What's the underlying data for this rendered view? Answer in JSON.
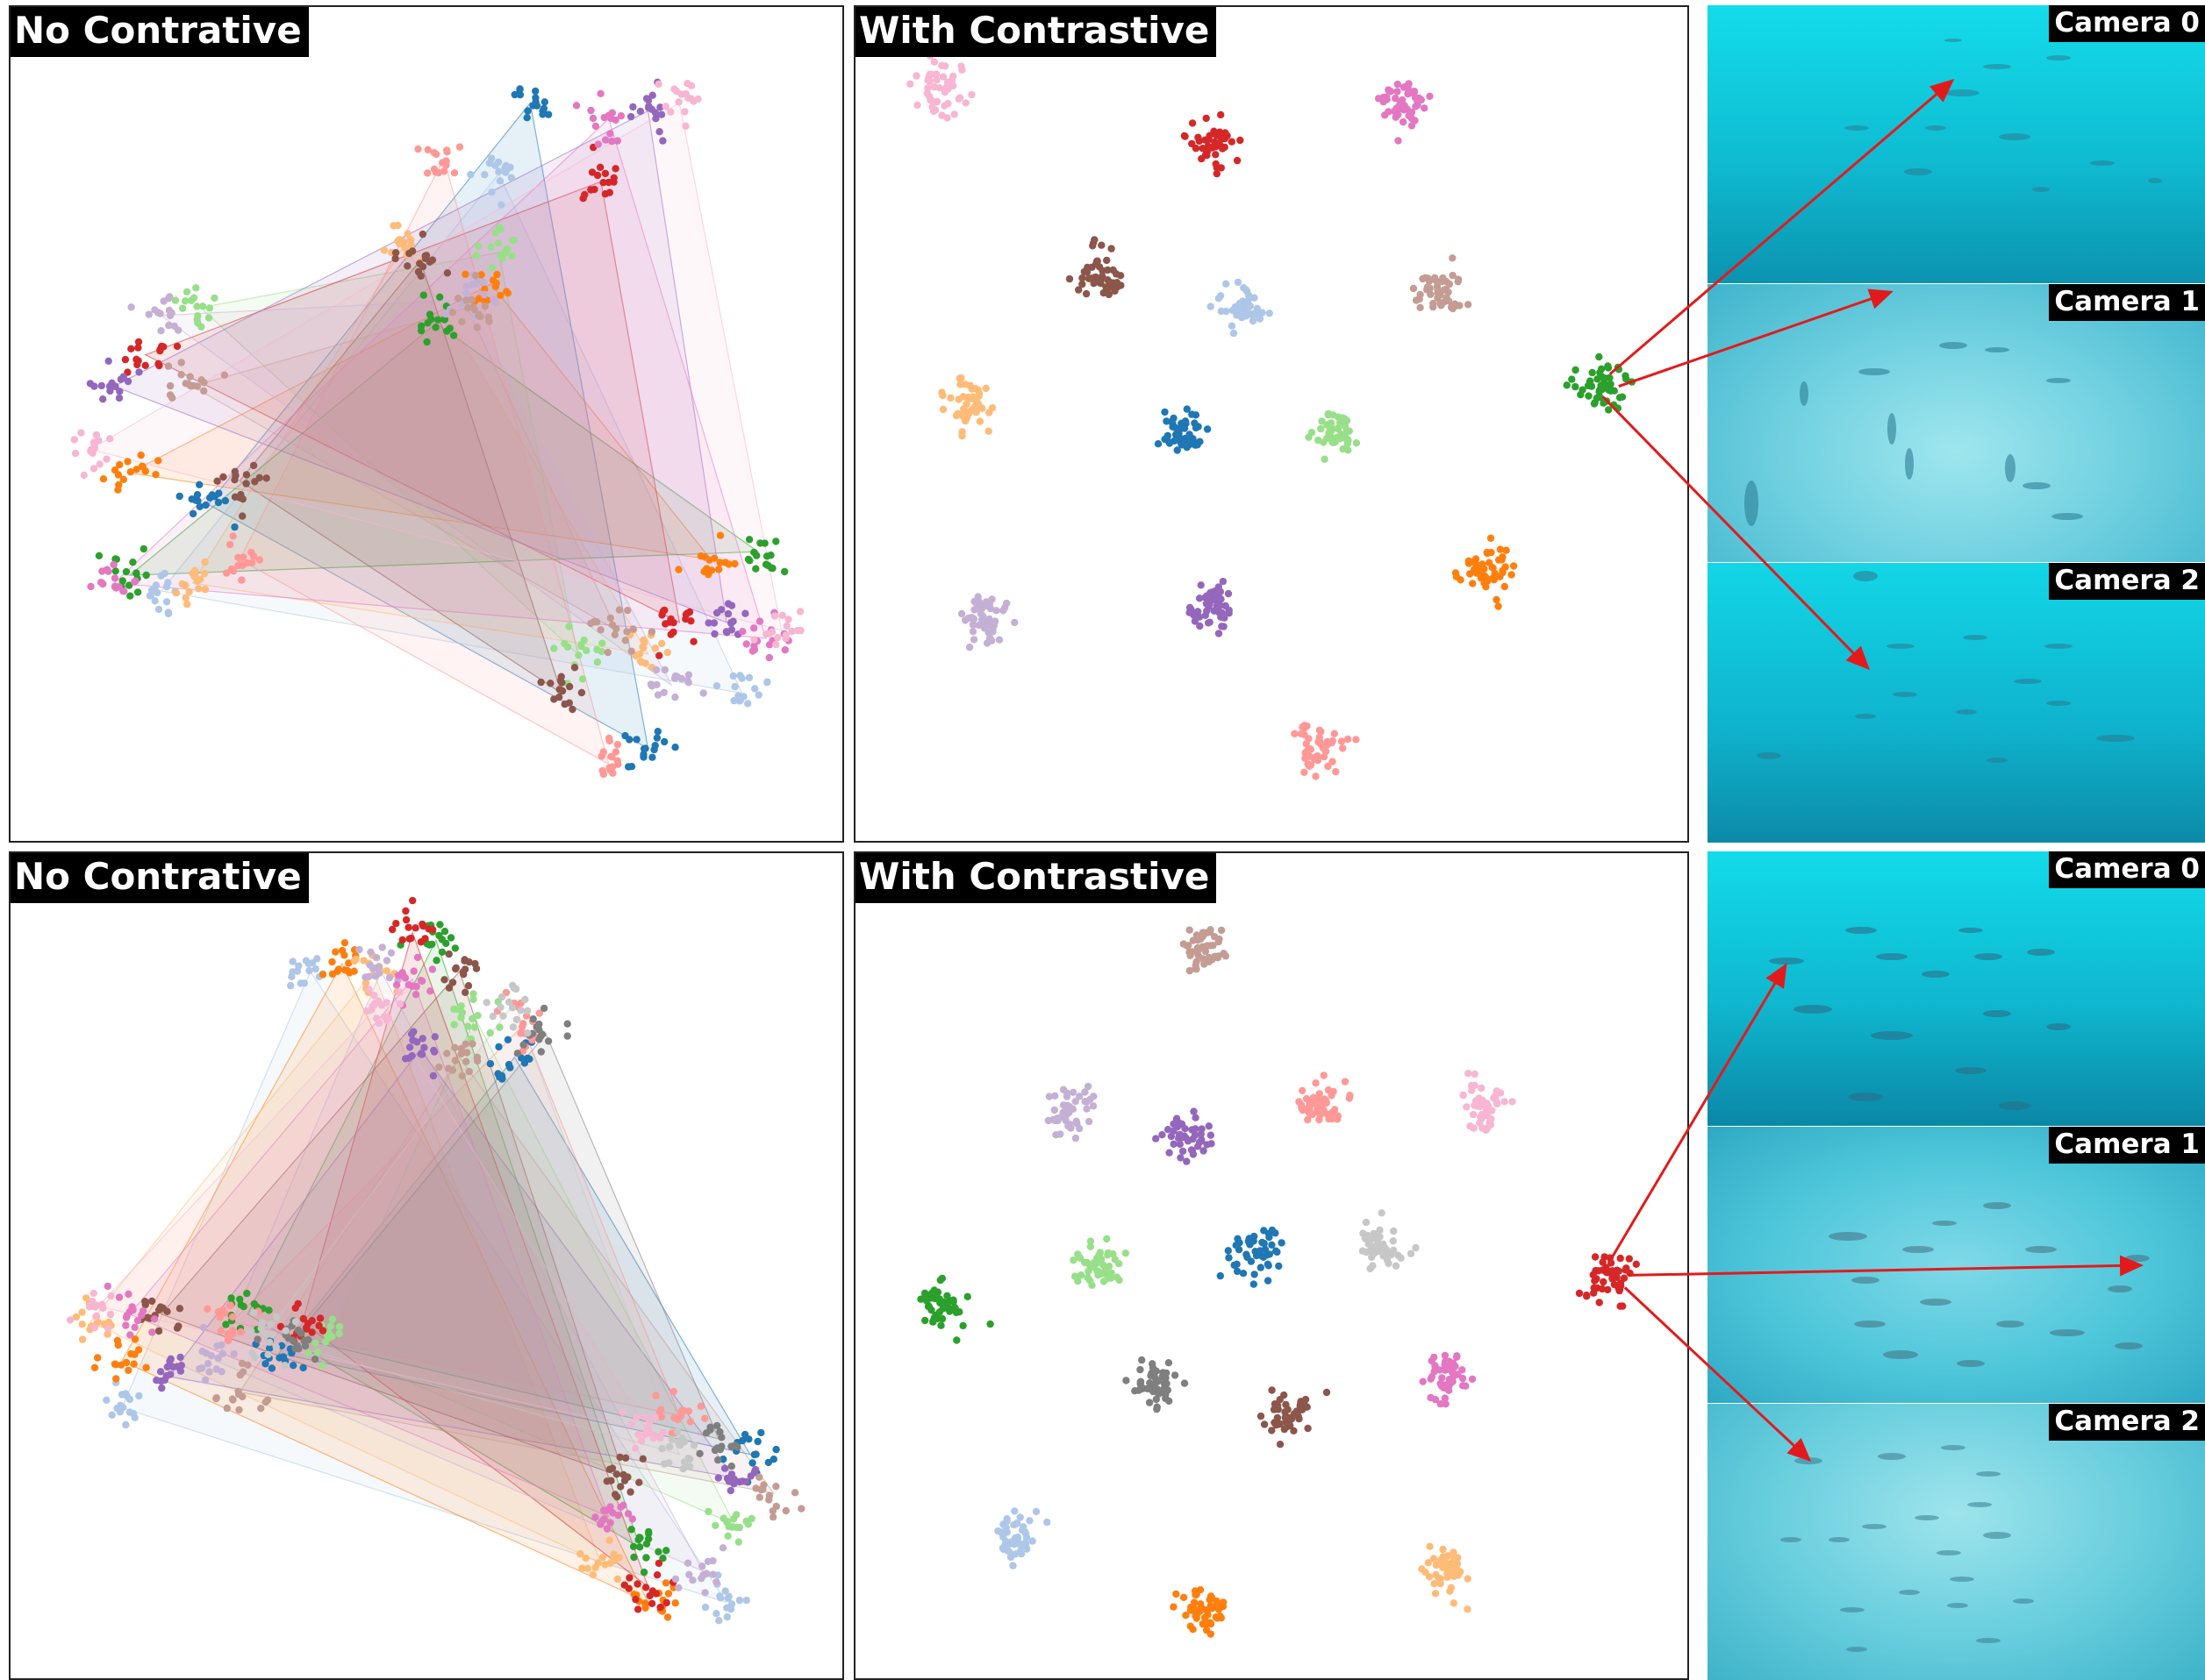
{
  "figure": {
    "rows": [
      {
        "left_title": "No Contrative",
        "right_title": "With Contrastive",
        "camera_labels": [
          "Camera 0",
          "Camera 1",
          "Camera 2"
        ],
        "highlight_cluster": "tab:green",
        "highlight_color": "#2ca02c"
      },
      {
        "left_title": "No Contrative",
        "right_title": "With Contrastive",
        "camera_labels": [
          "Camera 0",
          "Camera 1",
          "Camera 2"
        ],
        "highlight_cluster": "tab:red",
        "highlight_color": "#d62728"
      }
    ],
    "arrow_color": "#e31a1c"
  },
  "chart_data": [
    {
      "type": "scatter",
      "title": "No Contrative",
      "xlim": [
        0,
        1
      ],
      "ylim": [
        0,
        1
      ],
      "grid": false,
      "axes_visible": false,
      "style": "per-identity convex hulls over three camera views",
      "series": [
        {
          "color": "#1f77b4",
          "centroids": [
            [
              0.63,
              0.91
            ],
            [
              0.22,
              0.4
            ],
            [
              0.78,
              0.09
            ]
          ]
        },
        {
          "color": "#aec7e8",
          "centroids": [
            [
              0.59,
              0.82
            ],
            [
              0.16,
              0.29
            ],
            [
              0.9,
              0.16
            ]
          ]
        },
        {
          "color": "#ff7f0e",
          "centroids": [
            [
              0.58,
              0.68
            ],
            [
              0.12,
              0.44
            ],
            [
              0.86,
              0.33
            ]
          ]
        },
        {
          "color": "#ffbb78",
          "centroids": [
            [
              0.47,
              0.73
            ],
            [
              0.2,
              0.3
            ],
            [
              0.78,
              0.21
            ]
          ]
        },
        {
          "color": "#2ca02c",
          "centroids": [
            [
              0.51,
              0.63
            ],
            [
              0.12,
              0.31
            ],
            [
              0.92,
              0.34
            ]
          ]
        },
        {
          "color": "#98df8a",
          "centroids": [
            [
              0.59,
              0.72
            ],
            [
              0.21,
              0.65
            ],
            [
              0.69,
              0.21
            ]
          ]
        },
        {
          "color": "#d62728",
          "centroids": [
            [
              0.72,
              0.81
            ],
            [
              0.14,
              0.59
            ],
            [
              0.82,
              0.25
            ]
          ]
        },
        {
          "color": "#ff9896",
          "centroids": [
            [
              0.52,
              0.84
            ],
            [
              0.26,
              0.33
            ],
            [
              0.73,
              0.07
            ]
          ]
        },
        {
          "color": "#9467bd",
          "centroids": [
            [
              0.78,
              0.9
            ],
            [
              0.1,
              0.55
            ],
            [
              0.88,
              0.25
            ]
          ]
        },
        {
          "color": "#c5b0d5",
          "centroids": [
            [
              0.16,
              0.64
            ],
            [
              0.55,
              0.66
            ],
            [
              0.81,
              0.17
            ]
          ]
        },
        {
          "color": "#8c564b",
          "centroids": [
            [
              0.49,
              0.71
            ],
            [
              0.26,
              0.43
            ],
            [
              0.67,
              0.16
            ]
          ]
        },
        {
          "color": "#c49c94",
          "centroids": [
            [
              0.2,
              0.55
            ],
            [
              0.55,
              0.65
            ],
            [
              0.74,
              0.24
            ]
          ]
        },
        {
          "color": "#e377c2",
          "centroids": [
            [
              0.73,
              0.89
            ],
            [
              0.1,
              0.3
            ],
            [
              0.93,
              0.23
            ]
          ]
        },
        {
          "color": "#f7b6d2",
          "centroids": [
            [
              0.82,
              0.91
            ],
            [
              0.07,
              0.47
            ],
            [
              0.95,
              0.24
            ]
          ]
        }
      ]
    },
    {
      "type": "scatter",
      "title": "With Contrastive",
      "xlim": [
        0,
        1
      ],
      "ylim": [
        0,
        1
      ],
      "grid": false,
      "axes_visible": false,
      "series": [
        {
          "color": "#f7b6d2",
          "centroid": [
            0.08,
            0.93
          ]
        },
        {
          "color": "#e377c2",
          "centroid": [
            0.66,
            0.91
          ]
        },
        {
          "color": "#d62728",
          "centroid": [
            0.42,
            0.86
          ]
        },
        {
          "color": "#8c564b",
          "centroid": [
            0.28,
            0.69
          ]
        },
        {
          "color": "#aec7e8",
          "centroid": [
            0.46,
            0.65
          ]
        },
        {
          "color": "#c49c94",
          "centroid": [
            0.71,
            0.67
          ]
        },
        {
          "color": "#2ca02c",
          "centroid": [
            0.92,
            0.55
          ]
        },
        {
          "color": "#ffbb78",
          "centroid": [
            0.11,
            0.53
          ]
        },
        {
          "color": "#1f77b4",
          "centroid": [
            0.38,
            0.49
          ]
        },
        {
          "color": "#98df8a",
          "centroid": [
            0.58,
            0.49
          ]
        },
        {
          "color": "#ff7f0e",
          "centroid": [
            0.77,
            0.32
          ]
        },
        {
          "color": "#c5b0d5",
          "centroid": [
            0.13,
            0.26
          ]
        },
        {
          "color": "#9467bd",
          "centroid": [
            0.42,
            0.27
          ]
        },
        {
          "color": "#ff9896",
          "centroid": [
            0.56,
            0.09
          ]
        }
      ]
    },
    {
      "type": "scatter",
      "title": "No Contrative",
      "xlim": [
        0,
        1
      ],
      "ylim": [
        0,
        1
      ],
      "grid": false,
      "axes_visible": false,
      "style": "per-identity convex hulls over three camera views",
      "series": [
        {
          "color": "#1f77b4",
          "centroids": [
            [
              0.61,
              0.77
            ],
            [
              0.31,
              0.39
            ],
            [
              0.91,
              0.26
            ]
          ]
        },
        {
          "color": "#aec7e8",
          "centroids": [
            [
              0.35,
              0.88
            ],
            [
              0.11,
              0.32
            ],
            [
              0.88,
              0.07
            ]
          ]
        },
        {
          "color": "#ff7f0e",
          "centroids": [
            [
              0.39,
              0.89
            ],
            [
              0.11,
              0.38
            ],
            [
              0.78,
              0.07
            ]
          ]
        },
        {
          "color": "#ffbb78",
          "centroids": [
            [
              0.43,
              0.88
            ],
            [
              0.07,
              0.43
            ],
            [
              0.72,
              0.12
            ]
          ]
        },
        {
          "color": "#2ca02c",
          "centroids": [
            [
              0.51,
              0.92
            ],
            [
              0.27,
              0.44
            ],
            [
              0.77,
              0.14
            ]
          ]
        },
        {
          "color": "#98df8a",
          "centroids": [
            [
              0.56,
              0.82
            ],
            [
              0.37,
              0.4
            ],
            [
              0.89,
              0.17
            ]
          ]
        },
        {
          "color": "#d62728",
          "centroids": [
            [
              0.48,
              0.93
            ],
            [
              0.34,
              0.43
            ],
            [
              0.78,
              0.09
            ]
          ]
        },
        {
          "color": "#ff9896",
          "centroids": [
            [
              0.62,
              0.81
            ],
            [
              0.25,
              0.43
            ],
            [
              0.82,
              0.31
            ]
          ]
        },
        {
          "color": "#9467bd",
          "centroids": [
            [
              0.49,
              0.78
            ],
            [
              0.17,
              0.36
            ],
            [
              0.89,
              0.23
            ]
          ]
        },
        {
          "color": "#c5b0d5",
          "centroids": [
            [
              0.44,
              0.88
            ],
            [
              0.23,
              0.38
            ],
            [
              0.85,
              0.11
            ]
          ]
        },
        {
          "color": "#8c564b",
          "centroids": [
            [
              0.54,
              0.88
            ],
            [
              0.16,
              0.44
            ],
            [
              0.75,
              0.23
            ]
          ]
        },
        {
          "color": "#c49c94",
          "centroids": [
            [
              0.54,
              0.77
            ],
            [
              0.26,
              0.34
            ],
            [
              0.94,
              0.21
            ]
          ]
        },
        {
          "color": "#e377c2",
          "centroids": [
            [
              0.48,
              0.87
            ],
            [
              0.12,
              0.44
            ],
            [
              0.73,
              0.18
            ]
          ]
        },
        {
          "color": "#f7b6d2",
          "centroids": [
            [
              0.44,
              0.84
            ],
            [
              0.08,
              0.45
            ],
            [
              0.78,
              0.29
            ]
          ]
        },
        {
          "color": "#7f7f7f",
          "centroids": [
            [
              0.65,
              0.8
            ],
            [
              0.33,
              0.41
            ],
            [
              0.87,
              0.28
            ]
          ]
        },
        {
          "color": "#c7c7c7",
          "centroids": [
            [
              0.61,
              0.84
            ],
            [
              0.29,
              0.41
            ],
            [
              0.82,
              0.26
            ]
          ]
        }
      ]
    },
    {
      "type": "scatter",
      "title": "With Contrastive",
      "xlim": [
        0,
        1
      ],
      "ylim": [
        0,
        1
      ],
      "grid": false,
      "axes_visible": false,
      "series": [
        {
          "color": "#c49c94",
          "centroid": [
            0.41,
            0.91
          ]
        },
        {
          "color": "#c5b0d5",
          "centroid": [
            0.24,
            0.7
          ]
        },
        {
          "color": "#9467bd",
          "centroid": [
            0.39,
            0.67
          ]
        },
        {
          "color": "#ff9896",
          "centroid": [
            0.56,
            0.71
          ]
        },
        {
          "color": "#f7b6d2",
          "centroid": [
            0.77,
            0.71
          ]
        },
        {
          "color": "#1f77b4",
          "centroid": [
            0.48,
            0.52
          ]
        },
        {
          "color": "#c7c7c7",
          "centroid": [
            0.64,
            0.53
          ]
        },
        {
          "color": "#98df8a",
          "centroid": [
            0.28,
            0.5
          ]
        },
        {
          "color": "#d62728",
          "centroid": [
            0.93,
            0.49
          ]
        },
        {
          "color": "#2ca02c",
          "centroid": [
            0.08,
            0.45
          ]
        },
        {
          "color": "#7f7f7f",
          "centroid": [
            0.35,
            0.35
          ]
        },
        {
          "color": "#8c564b",
          "centroid": [
            0.52,
            0.31
          ]
        },
        {
          "color": "#e377c2",
          "centroid": [
            0.72,
            0.36
          ]
        },
        {
          "color": "#aec7e8",
          "centroid": [
            0.17,
            0.15
          ]
        },
        {
          "color": "#ff7f0e",
          "centroid": [
            0.41,
            0.06
          ]
        },
        {
          "color": "#ffbb78",
          "centroid": [
            0.72,
            0.11
          ]
        }
      ]
    }
  ]
}
